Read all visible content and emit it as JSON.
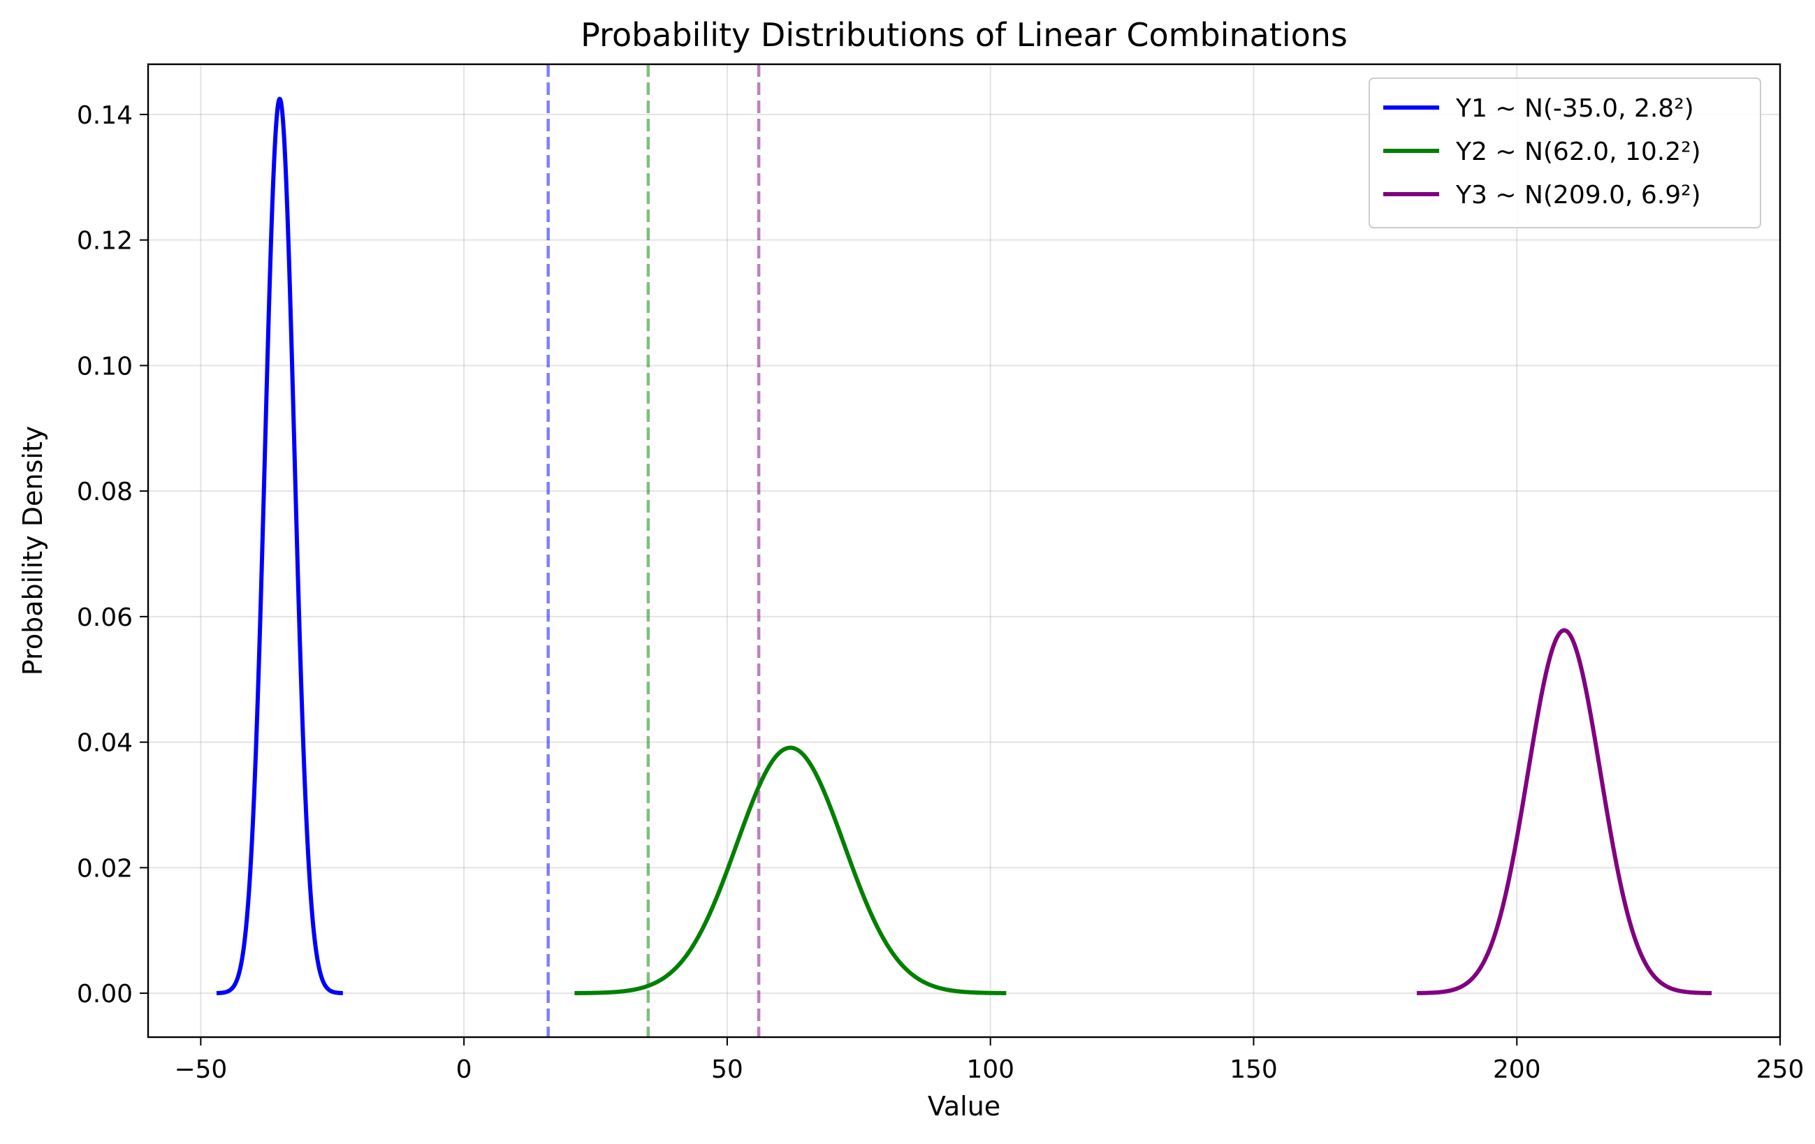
{
  "chart_data": {
    "type": "line",
    "title": "Probability Distributions of Linear Combinations",
    "xlabel": "Value",
    "ylabel": "Probability Density",
    "xlim": [
      -60,
      250
    ],
    "ylim": [
      -0.007,
      0.148
    ],
    "xticks": [
      -50,
      0,
      50,
      100,
      150,
      200,
      250
    ],
    "xtick_labels": [
      "−50",
      "0",
      "50",
      "100",
      "150",
      "200",
      "250"
    ],
    "yticks": [
      0.0,
      0.02,
      0.04,
      0.06,
      0.08,
      0.1,
      0.12,
      0.14
    ],
    "ytick_labels": [
      "0.00",
      "0.02",
      "0.04",
      "0.06",
      "0.08",
      "0.10",
      "0.12",
      "0.14"
    ],
    "grid": true,
    "legend_position": "top-right",
    "series": [
      {
        "name": "Y1 ~ N(-35.0, 2.8²)",
        "mean": -35.0,
        "sd": 2.8,
        "x_range": [
          -47,
          -23
        ],
        "color": "#0000ff"
      },
      {
        "name": "Y2 ~ N(62.0, 10.2²)",
        "mean": 62.0,
        "sd": 10.2,
        "x_range": [
          21,
          103
        ],
        "color": "#008000"
      },
      {
        "name": "Y3 ~ N(209.0, 6.9²)",
        "mean": 209.0,
        "sd": 6.9,
        "x_range": [
          181,
          237
        ],
        "color": "#800080"
      }
    ],
    "vlines": [
      {
        "x": 16,
        "color": "#0000ff"
      },
      {
        "x": 35,
        "color": "#008000"
      },
      {
        "x": 56,
        "color": "#800080"
      }
    ]
  }
}
